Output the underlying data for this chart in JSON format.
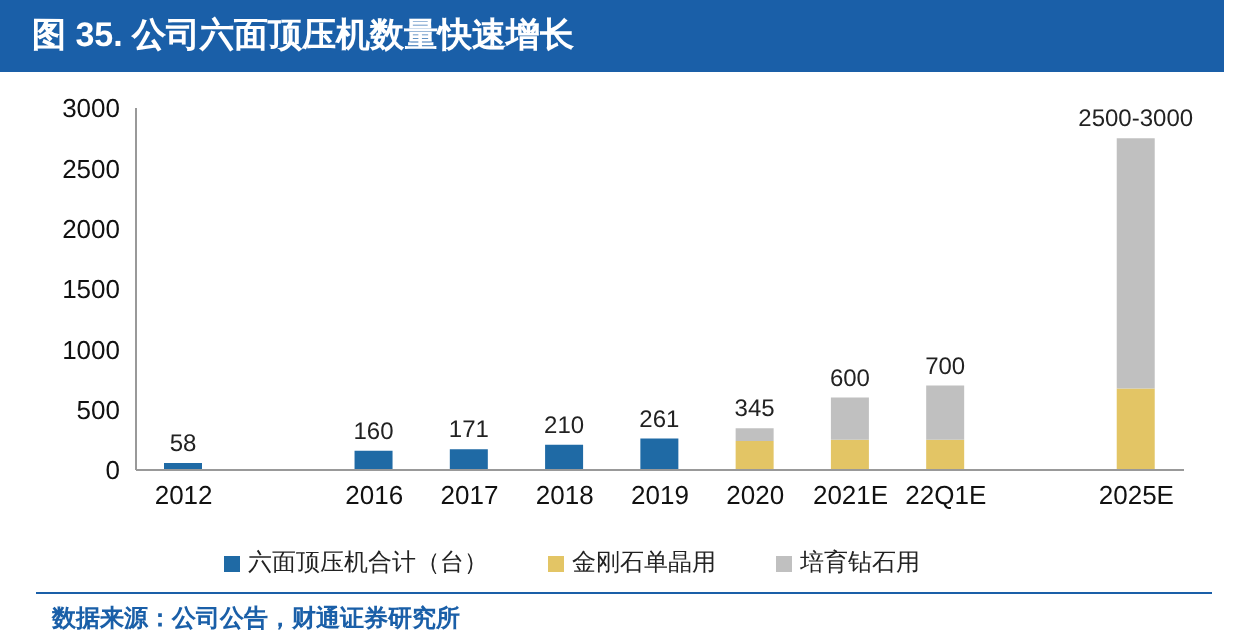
{
  "chart_data": {
    "type": "bar",
    "title": "图 35. 公司六面顶压机数量快速增长",
    "categories": [
      "2012",
      null,
      "2016",
      "2017",
      "2018",
      "2019",
      "2020",
      "2021E",
      "22Q1E",
      null,
      "2025E"
    ],
    "stacked": true,
    "series": [
      {
        "name": "六面顶压机合计（台）",
        "color": "#1f6aa5",
        "values": [
          58,
          null,
          160,
          171,
          210,
          261,
          null,
          null,
          null,
          null,
          null
        ]
      },
      {
        "name": "金刚石单晶用",
        "color": "#e3c565",
        "values": [
          null,
          null,
          null,
          null,
          null,
          null,
          240,
          250,
          250,
          null,
          675
        ]
      },
      {
        "name": "培育钻石用",
        "color": "#c0c0c0",
        "values": [
          null,
          null,
          null,
          null,
          null,
          null,
          105,
          350,
          450,
          null,
          2075
        ]
      }
    ],
    "totals": [
      "58",
      null,
      "160",
      "171",
      "210",
      "261",
      "345",
      "600",
      "700",
      null,
      "2500-3000"
    ],
    "ylim": [
      0,
      3000
    ],
    "yticks": [
      0,
      500,
      1000,
      1500,
      2000,
      2500,
      3000
    ],
    "grid": false,
    "legend": "bottom",
    "annotations": [
      "数据来源：公司公告，财通证券研究所"
    ]
  }
}
